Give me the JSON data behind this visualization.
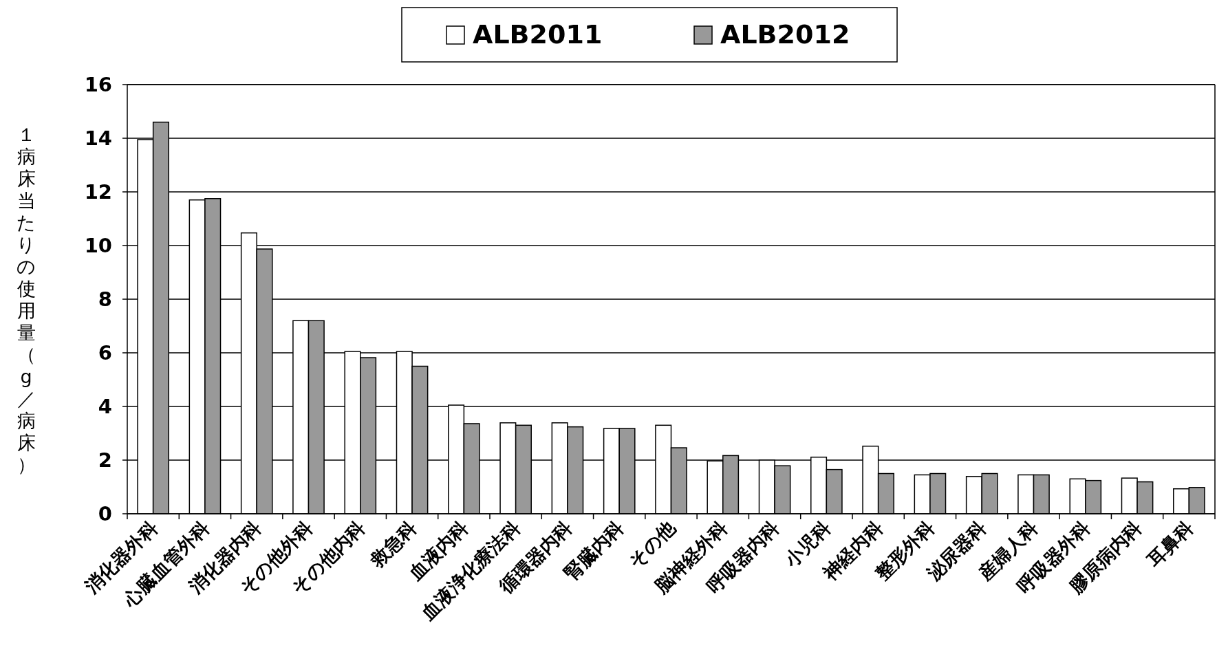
{
  "chart_data": {
    "type": "bar",
    "ylabel": "１病床当たりの使用量（g／病床）",
    "categories": [
      "消化器外科",
      "心臓血管外科",
      "消化器内科",
      "その他外科",
      "その他内科",
      "救急科",
      "血液内科",
      "血液浄化療法科",
      "循環器内科",
      "腎臓内科",
      "その他",
      "脳神経外科",
      "呼吸器内科",
      "小児科",
      "神経内科",
      "整形外科",
      "泌尿器科",
      "産婦人科",
      "呼吸器外科",
      "膠原病内科",
      "耳鼻科"
    ],
    "series": [
      {
        "name": "ALB2011",
        "color": "#ffffff",
        "values": [
          13.95,
          11.7,
          10.47,
          7.2,
          6.05,
          6.05,
          4.05,
          3.39,
          3.39,
          3.18,
          3.3,
          1.97,
          2.0,
          2.11,
          2.52,
          1.45,
          1.39,
          1.45,
          1.3,
          1.33,
          0.93
        ]
      },
      {
        "name": "ALB2012",
        "color": "#999999",
        "values": [
          14.6,
          11.75,
          9.87,
          7.2,
          5.82,
          5.5,
          3.36,
          3.3,
          3.24,
          3.18,
          2.46,
          2.17,
          1.79,
          1.65,
          1.5,
          1.5,
          1.5,
          1.45,
          1.24,
          1.19,
          0.98
        ]
      }
    ],
    "ylim": [
      0,
      16
    ],
    "yticks": [
      0,
      2,
      4,
      6,
      8,
      10,
      12,
      14,
      16
    ],
    "grid": "y",
    "legend": "top"
  }
}
